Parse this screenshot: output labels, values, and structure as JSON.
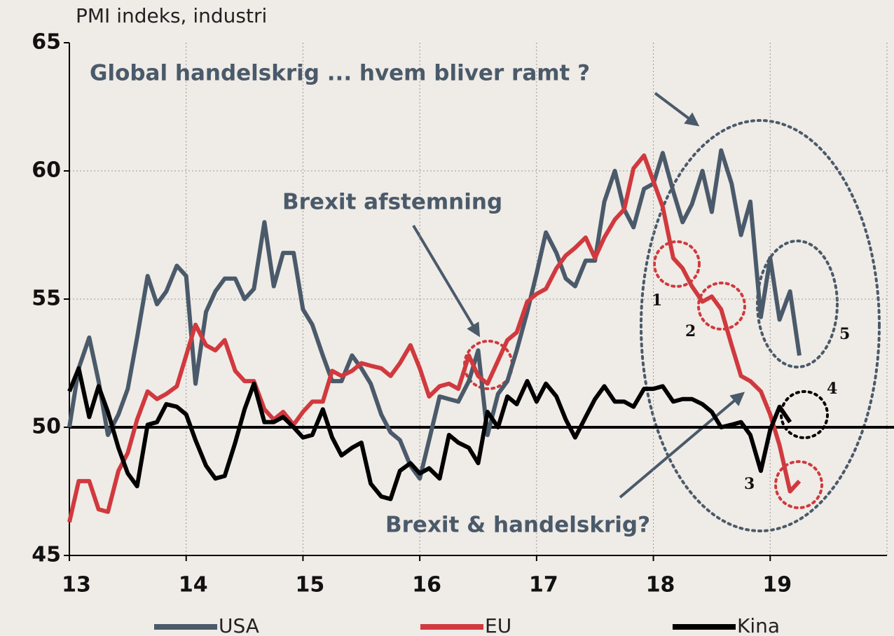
{
  "chart_data": {
    "type": "line",
    "title": "PMI indeks, industri",
    "x": [
      13.0,
      13.08,
      13.17,
      13.25,
      13.33,
      13.42,
      13.5,
      13.58,
      13.67,
      13.75,
      13.83,
      13.92,
      14.0,
      14.08,
      14.17,
      14.25,
      14.33,
      14.42,
      14.5,
      14.58,
      14.67,
      14.75,
      14.83,
      14.92,
      15.0,
      15.08,
      15.17,
      15.25,
      15.33,
      15.42,
      15.5,
      15.58,
      15.67,
      15.75,
      15.83,
      15.92,
      16.0,
      16.08,
      16.17,
      16.25,
      16.33,
      16.42,
      16.5,
      16.58,
      16.67,
      16.75,
      16.83,
      16.92,
      17.0,
      17.08,
      17.17,
      17.25,
      17.33,
      17.42,
      17.5,
      17.58,
      17.67,
      17.75,
      17.83,
      17.92,
      18.0,
      18.08,
      18.17,
      18.25,
      18.33,
      18.42,
      18.5,
      18.58,
      18.67,
      18.75,
      18.83,
      18.92,
      19.0,
      19.08,
      19.17,
      19.25
    ],
    "series": [
      {
        "name": "USA",
        "color": "#4a5a6a",
        "values": [
          50.0,
          52.3,
          53.5,
          51.8,
          49.7,
          50.5,
          51.5,
          53.5,
          55.9,
          54.8,
          55.3,
          56.3,
          55.9,
          51.7,
          54.5,
          55.3,
          55.8,
          55.8,
          55.0,
          55.4,
          58.0,
          55.5,
          56.8,
          56.8,
          54.6,
          54.0,
          52.8,
          51.8,
          51.8,
          52.8,
          52.3,
          51.7,
          50.5,
          49.8,
          49.5,
          48.5,
          48.0,
          49.5,
          51.2,
          51.1,
          51.0,
          51.8,
          53.0,
          49.7,
          51.3,
          51.8,
          53.0,
          54.5,
          56.0,
          57.6,
          56.8,
          55.8,
          55.5,
          56.5,
          56.5,
          58.8,
          60.0,
          58.5,
          57.8,
          59.3,
          59.5,
          60.7,
          59.2,
          58.0,
          58.7,
          60.0,
          58.4,
          60.8,
          59.5,
          57.5,
          58.8,
          54.3,
          56.6,
          54.2,
          55.3,
          52.8
        ]
      },
      {
        "name": "EU",
        "color": "#d0393e",
        "values": [
          46.3,
          47.9,
          47.9,
          46.8,
          46.7,
          48.3,
          49.0,
          50.3,
          51.4,
          51.1,
          51.3,
          51.6,
          52.8,
          54.0,
          53.2,
          53.0,
          53.4,
          52.2,
          51.8,
          51.8,
          50.7,
          50.3,
          50.6,
          50.1,
          50.6,
          51.0,
          51.0,
          52.2,
          52.0,
          52.2,
          52.5,
          52.4,
          52.3,
          52.0,
          52.5,
          53.2,
          52.3,
          51.2,
          51.6,
          51.7,
          51.5,
          52.8,
          52.0,
          51.7,
          52.6,
          53.4,
          53.7,
          54.9,
          55.2,
          55.4,
          56.2,
          56.7,
          57.0,
          57.4,
          56.6,
          57.4,
          58.1,
          58.5,
          60.1,
          60.6,
          59.6,
          58.6,
          56.6,
          56.2,
          55.5,
          54.9,
          55.1,
          54.6,
          53.2,
          52.0,
          51.8,
          51.4,
          50.5,
          49.3,
          47.5,
          47.9
        ]
      },
      {
        "name": "Kina",
        "color": "#000000",
        "values": [
          51.4,
          52.3,
          50.4,
          51.6,
          50.6,
          49.2,
          48.2,
          47.7,
          50.1,
          50.2,
          50.9,
          50.8,
          50.5,
          49.5,
          48.5,
          48.0,
          48.1,
          49.4,
          50.7,
          51.7,
          50.2,
          50.2,
          50.4,
          50.0,
          49.6,
          49.7,
          50.7,
          49.6,
          48.9,
          49.2,
          49.4,
          47.8,
          47.3,
          47.2,
          48.3,
          48.6,
          48.2,
          48.4,
          48.0,
          49.7,
          49.4,
          49.2,
          48.6,
          50.6,
          50.0,
          51.2,
          50.9,
          51.8,
          51.0,
          51.7,
          51.2,
          50.3,
          49.6,
          50.4,
          51.1,
          51.6,
          51.0,
          51.0,
          50.8,
          51.5,
          51.5,
          51.6,
          51.0,
          51.1,
          51.1,
          50.9,
          50.6,
          50.0,
          50.1,
          50.2,
          49.7,
          48.3,
          49.9,
          50.8,
          50.2,
          null
        ]
      }
    ],
    "xlim": [
      13,
      20
    ],
    "xticks": [
      13,
      14,
      15,
      16,
      17,
      18,
      19
    ],
    "ylim": [
      45,
      65
    ],
    "yticks": [
      45,
      50,
      55,
      60,
      65
    ],
    "reference_line": 50,
    "grid": true,
    "legend": "bottom",
    "annotations": [
      "Global handelskrig ... hvem bliver ramt ?",
      "Brexit afstemning",
      "Brexit & handelskrig?",
      "1",
      "2",
      "3",
      "4",
      "5"
    ]
  }
}
